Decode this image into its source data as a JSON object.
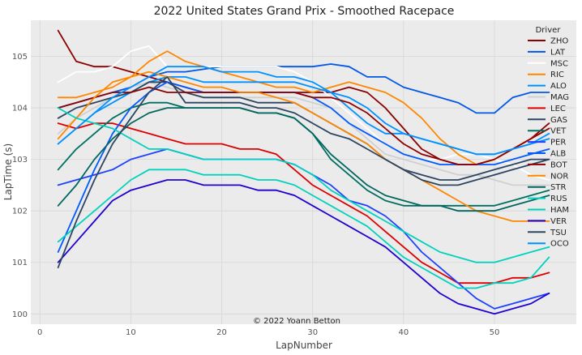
{
  "chart_data": {
    "type": "line",
    "title": "2022 United States Grand Prix - Smoothed Racepace",
    "xlabel": "LapNumber",
    "ylabel": "LapTime (s)",
    "xlim": [
      -1,
      59
    ],
    "ylim": [
      99.8,
      105.7
    ],
    "xticks": [
      "0",
      "10",
      "20",
      "30",
      "40",
      "50"
    ],
    "yticks": [
      "100",
      "101",
      "102",
      "103",
      "104",
      "105"
    ],
    "grid": true,
    "legend": {
      "title": "Driver",
      "placement": "top-right"
    },
    "annotation": "© 2022 Yoann Betton",
    "series": [
      {
        "name": "ZHO",
        "color": "#8b0000",
        "x": [
          2,
          4,
          6,
          8,
          10,
          12,
          14,
          16,
          18,
          20,
          22,
          24,
          26,
          28,
          30,
          32,
          34,
          36,
          38,
          40,
          42,
          44,
          46,
          48,
          50,
          52,
          54,
          56
        ],
        "y": [
          105.5,
          104.9,
          104.8,
          104.8,
          104.7,
          104.6,
          104.5,
          104.4,
          104.3,
          104.3,
          104.3,
          104.3,
          104.3,
          104.3,
          104.3,
          104.3,
          104.4,
          104.3,
          104.0,
          103.6,
          103.2,
          103.0,
          102.9,
          102.9,
          103.0,
          103.2,
          103.4,
          103.7
        ]
      },
      {
        "name": "LAT",
        "color": "#0057e7",
        "x": [
          2,
          4,
          6,
          8,
          10,
          12,
          14,
          16,
          18,
          20,
          22,
          24,
          26,
          28,
          30,
          32,
          34,
          36,
          38,
          40,
          42,
          44,
          46,
          48,
          50,
          52,
          54,
          56
        ],
        "y": [
          104.0,
          104.1,
          104.2,
          104.3,
          104.4,
          104.6,
          104.7,
          104.7,
          104.75,
          104.8,
          104.8,
          104.8,
          104.8,
          104.8,
          104.8,
          104.85,
          104.8,
          104.6,
          104.6,
          104.4,
          104.3,
          104.2,
          104.1,
          103.9,
          103.9,
          104.2,
          104.3,
          104.3
        ]
      },
      {
        "name": "MSC",
        "color": "#ffffff",
        "x": [
          2,
          4,
          6,
          8,
          10,
          12,
          14,
          16,
          18,
          20,
          22,
          24,
          26,
          28,
          30,
          32,
          34,
          36,
          38,
          40,
          42,
          44,
          46,
          48,
          50,
          52,
          54,
          56
        ],
        "y": [
          104.5,
          104.7,
          104.7,
          104.8,
          105.1,
          105.2,
          104.8,
          104.8,
          104.8,
          104.8,
          104.8,
          104.8,
          104.8,
          104.7,
          104.5,
          104.2,
          103.9,
          103.6,
          103.3,
          103.1,
          103.0,
          103.0,
          103.1,
          103.1,
          103.0,
          102.9,
          102.7,
          102.6
        ]
      },
      {
        "name": "RIC",
        "color": "#ff8700",
        "x": [
          2,
          4,
          6,
          8,
          10,
          12,
          14,
          16,
          18,
          20,
          22,
          24,
          26,
          28,
          30,
          32,
          34,
          36,
          38,
          40,
          42,
          44,
          46,
          48,
          50,
          52,
          54,
          56
        ],
        "y": [
          104.2,
          104.2,
          104.3,
          104.4,
          104.6,
          104.9,
          105.1,
          104.9,
          104.8,
          104.7,
          104.6,
          104.5,
          104.4,
          104.4,
          104.3,
          104.4,
          104.5,
          104.4,
          104.3,
          104.1,
          103.8,
          103.4,
          103.1,
          102.9,
          103.0,
          103.2,
          103.4,
          103.6
        ]
      },
      {
        "name": "ALO",
        "color": "#0090ff",
        "x": [
          2,
          4,
          6,
          8,
          10,
          12,
          14,
          16,
          18,
          20,
          22,
          24,
          26,
          28,
          30,
          32,
          34,
          36,
          38,
          40,
          42,
          44,
          46,
          48,
          50,
          52,
          54,
          56
        ],
        "y": [
          103.3,
          103.6,
          103.9,
          104.1,
          104.3,
          104.5,
          104.6,
          104.6,
          104.5,
          104.5,
          104.5,
          104.5,
          104.5,
          104.5,
          104.4,
          104.3,
          104.0,
          103.7,
          103.5,
          103.5,
          103.4,
          103.3,
          103.2,
          103.1,
          103.1,
          103.2,
          103.3,
          103.5
        ]
      },
      {
        "name": "MAG",
        "color": "#d0d0d0",
        "x": [
          2,
          4,
          6,
          8,
          10,
          12,
          14,
          16,
          18,
          20,
          22,
          24,
          26,
          28,
          30,
          32,
          34,
          36,
          38,
          40,
          42,
          44,
          46,
          48,
          50,
          52,
          54,
          56
        ],
        "y": [
          103.5,
          103.8,
          104.0,
          104.2,
          104.4,
          104.5,
          104.4,
          104.3,
          104.2,
          104.2,
          104.2,
          104.2,
          104.2,
          104.2,
          104.1,
          104.0,
          103.7,
          103.4,
          103.1,
          103.0,
          102.9,
          102.8,
          102.7,
          102.7,
          102.6,
          102.5,
          102.5,
          102.5
        ]
      },
      {
        "name": "LEC",
        "color": "#dc0000",
        "x": [
          2,
          4,
          6,
          8,
          10,
          12,
          14,
          16,
          18,
          20,
          22,
          24,
          26,
          28,
          30,
          32,
          34,
          36,
          38,
          40,
          42,
          44,
          46,
          48,
          50,
          52,
          54,
          56
        ],
        "y": [
          103.7,
          103.6,
          103.7,
          103.7,
          103.6,
          103.5,
          103.4,
          103.3,
          103.3,
          103.3,
          103.2,
          103.2,
          103.1,
          102.8,
          102.5,
          102.3,
          102.1,
          101.9,
          101.6,
          101.3,
          101.0,
          100.8,
          100.6,
          100.6,
          100.6,
          100.7,
          100.7,
          100.8
        ]
      },
      {
        "name": "GAS",
        "color": "#2b4562",
        "x": [
          2,
          4,
          6,
          8,
          10,
          12,
          14,
          16,
          18,
          20,
          22,
          24,
          26,
          28,
          30,
          32,
          34,
          36,
          38,
          40,
          42,
          44,
          46,
          48,
          50,
          52,
          54,
          56
        ],
        "y": [
          103.8,
          104.0,
          104.1,
          104.2,
          104.3,
          104.5,
          104.5,
          104.3,
          104.2,
          104.2,
          104.2,
          104.1,
          104.1,
          104.1,
          103.9,
          103.7,
          103.5,
          103.3,
          103.0,
          102.8,
          102.7,
          102.6,
          102.6,
          102.7,
          102.8,
          102.9,
          103.0,
          103.0
        ]
      },
      {
        "name": "VET",
        "color": "#006f62",
        "x": [
          2,
          4,
          6,
          8,
          10,
          12,
          14,
          16,
          18,
          20,
          22,
          24,
          26,
          28,
          30,
          32,
          34,
          36,
          38,
          40,
          42,
          44,
          46,
          48,
          50,
          52,
          54,
          56
        ],
        "y": [
          102.8,
          103.2,
          103.5,
          103.8,
          104.0,
          104.1,
          104.1,
          104.0,
          104.0,
          104.0,
          104.0,
          103.9,
          103.9,
          103.8,
          103.5,
          103.0,
          102.7,
          102.4,
          102.2,
          102.1,
          102.1,
          102.1,
          102.1,
          102.1,
          102.1,
          102.2,
          102.3,
          102.4
        ]
      },
      {
        "name": "PER",
        "color": "#1e41ff",
        "x": [
          2,
          4,
          6,
          8,
          10,
          12,
          14,
          16,
          18,
          20,
          22,
          24,
          26,
          28,
          30,
          32,
          34,
          36,
          38,
          40,
          42,
          44,
          46,
          48,
          50,
          52,
          54,
          56
        ],
        "y": [
          102.5,
          102.6,
          102.7,
          102.8,
          103.0,
          103.1,
          103.2,
          103.1,
          103.0,
          103.0,
          103.0,
          103.0,
          103.0,
          102.9,
          102.7,
          102.5,
          102.2,
          102.1,
          101.9,
          101.6,
          101.2,
          100.9,
          100.6,
          100.3,
          100.1,
          100.2,
          100.3,
          100.4
        ]
      },
      {
        "name": "ALB",
        "color": "#005aff",
        "x": [
          2,
          4,
          6,
          8,
          10,
          12,
          14,
          16,
          18,
          20,
          22,
          24,
          26,
          28,
          30,
          32,
          34,
          36,
          38,
          40,
          42,
          44,
          46,
          48,
          50,
          52,
          54,
          56
        ],
        "y": [
          101.2,
          102.0,
          102.8,
          103.5,
          104.0,
          104.3,
          104.5,
          104.4,
          104.3,
          104.3,
          104.3,
          104.3,
          104.3,
          104.3,
          104.2,
          104.0,
          103.7,
          103.5,
          103.3,
          103.1,
          103.0,
          102.9,
          102.9,
          102.9,
          102.9,
          103.0,
          103.1,
          103.2
        ]
      },
      {
        "name": "BOT",
        "color": "#900000",
        "x": [
          2,
          4,
          6,
          8,
          10,
          12,
          14,
          16,
          18,
          20,
          22,
          24,
          26,
          28,
          30,
          32,
          34,
          36,
          38,
          40,
          42,
          44,
          46,
          48,
          50,
          52,
          54,
          56
        ],
        "y": [
          104.0,
          104.1,
          104.2,
          104.3,
          104.3,
          104.4,
          104.3,
          104.3,
          104.3,
          104.3,
          104.3,
          104.3,
          104.3,
          104.3,
          104.2,
          104.2,
          104.1,
          103.9,
          103.6,
          103.3,
          103.1,
          103.0,
          102.9,
          102.9,
          103.0,
          103.2,
          103.4,
          103.6
        ]
      },
      {
        "name": "NOR",
        "color": "#ff8700",
        "x": [
          2,
          4,
          6,
          8,
          10,
          12,
          14,
          16,
          18,
          20,
          22,
          24,
          26,
          28,
          30,
          32,
          34,
          36,
          38,
          40,
          42,
          44,
          46,
          48,
          50,
          52,
          54,
          56
        ],
        "y": [
          103.4,
          103.8,
          104.2,
          104.5,
          104.6,
          104.7,
          104.6,
          104.5,
          104.4,
          104.4,
          104.3,
          104.3,
          104.2,
          104.1,
          103.9,
          103.7,
          103.5,
          103.3,
          103.0,
          102.8,
          102.6,
          102.4,
          102.2,
          102.0,
          101.9,
          101.8,
          101.8,
          101.8
        ]
      },
      {
        "name": "STR",
        "color": "#00665e",
        "x": [
          2,
          4,
          6,
          8,
          10,
          12,
          14,
          16,
          18,
          20,
          22,
          24,
          26,
          28,
          30,
          32,
          34,
          36,
          38,
          40,
          42,
          44,
          46,
          48,
          50,
          52,
          54,
          56
        ],
        "y": [
          102.1,
          102.5,
          103.0,
          103.4,
          103.7,
          103.9,
          104.0,
          104.0,
          104.0,
          104.0,
          104.0,
          103.9,
          103.9,
          103.8,
          103.5,
          103.1,
          102.8,
          102.5,
          102.3,
          102.2,
          102.1,
          102.1,
          102.0,
          102.0,
          102.0,
          102.1,
          102.2,
          102.3
        ]
      },
      {
        "name": "RUS",
        "color": "#00d2be",
        "x": [
          2,
          4,
          6,
          8,
          10,
          12,
          14,
          16,
          18,
          20,
          22,
          24,
          26,
          28,
          30,
          32,
          34,
          36,
          38,
          40,
          42,
          44,
          46,
          48,
          50,
          52,
          54,
          56
        ],
        "y": [
          104.0,
          103.8,
          103.7,
          103.6,
          103.4,
          103.2,
          103.2,
          103.1,
          103.0,
          103.0,
          103.0,
          103.0,
          103.0,
          102.9,
          102.7,
          102.4,
          102.2,
          102.0,
          101.8,
          101.6,
          101.4,
          101.2,
          101.1,
          101.0,
          101.0,
          101.1,
          101.2,
          101.3
        ]
      },
      {
        "name": "HAM",
        "color": "#00d2be",
        "x": [
          2,
          4,
          6,
          8,
          10,
          12,
          14,
          16,
          18,
          20,
          22,
          24,
          26,
          28,
          30,
          32,
          34,
          36,
          38,
          40,
          42,
          44,
          46,
          48,
          50,
          52,
          54,
          56
        ],
        "y": [
          101.4,
          101.7,
          102.0,
          102.3,
          102.6,
          102.8,
          102.8,
          102.8,
          102.7,
          102.7,
          102.7,
          102.6,
          102.6,
          102.5,
          102.3,
          102.1,
          101.9,
          101.7,
          101.4,
          101.1,
          100.9,
          100.7,
          100.5,
          100.5,
          100.6,
          100.6,
          100.7,
          101.1
        ]
      },
      {
        "name": "VER",
        "color": "#1e00d2",
        "x": [
          2,
          4,
          6,
          8,
          10,
          12,
          14,
          16,
          18,
          20,
          22,
          24,
          26,
          28,
          30,
          32,
          34,
          36,
          38,
          40,
          42,
          44,
          46,
          48,
          50,
          52,
          54,
          56
        ],
        "y": [
          101.0,
          101.4,
          101.8,
          102.2,
          102.4,
          102.5,
          102.6,
          102.6,
          102.5,
          102.5,
          102.5,
          102.4,
          102.4,
          102.3,
          102.1,
          101.9,
          101.7,
          101.5,
          101.3,
          101.0,
          100.7,
          100.4,
          100.2,
          100.1,
          100.0,
          100.1,
          100.2,
          100.4
        ]
      },
      {
        "name": "TSU",
        "color": "#2b4562",
        "x": [
          2,
          4,
          6,
          8,
          10,
          12,
          14,
          16,
          18,
          20,
          22,
          24,
          26,
          28,
          30,
          32,
          34,
          36,
          38,
          40,
          42,
          44,
          46,
          48,
          50,
          52,
          54,
          56
        ],
        "y": [
          100.9,
          101.8,
          102.6,
          103.3,
          103.8,
          104.3,
          104.6,
          104.1,
          104.1,
          104.1,
          104.1,
          104.0,
          104.0,
          103.9,
          103.7,
          103.5,
          103.4,
          103.2,
          103.0,
          102.8,
          102.6,
          102.5,
          102.5,
          102.6,
          102.7,
          102.8,
          102.9,
          103.0
        ]
      },
      {
        "name": "OCO",
        "color": "#0090ff",
        "x": [
          2,
          4,
          6,
          8,
          10,
          12,
          14,
          16,
          18,
          20,
          22,
          24,
          26,
          28,
          30,
          32,
          34,
          36,
          38,
          40,
          42,
          44,
          46,
          48,
          50,
          52,
          54,
          56
        ],
        "y": [
          103.3,
          103.6,
          103.9,
          104.2,
          104.4,
          104.6,
          104.8,
          104.8,
          104.8,
          104.7,
          104.7,
          104.7,
          104.6,
          104.6,
          104.5,
          104.3,
          104.2,
          104.0,
          103.7,
          103.5,
          103.4,
          103.3,
          103.2,
          103.1,
          103.1,
          103.2,
          103.3,
          103.4
        ]
      }
    ]
  }
}
